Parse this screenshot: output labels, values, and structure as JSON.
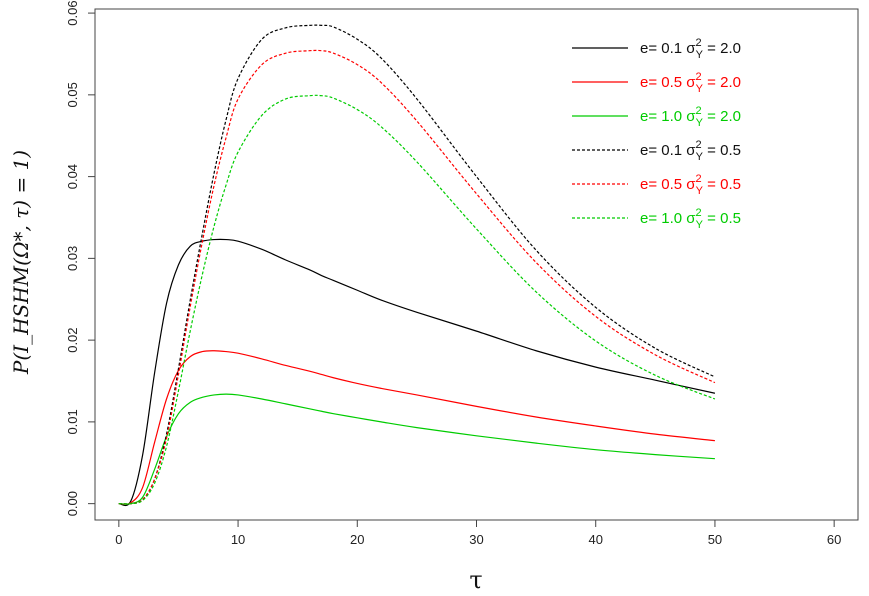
{
  "chart_data": {
    "type": "line",
    "title": "",
    "xlabel": "τ",
    "ylabel": "P(I_HSHM(Ω*, τ) = 1)",
    "xlim": [
      -2,
      62
    ],
    "ylim": [
      -0.002,
      0.0605
    ],
    "x_ticks": [
      0,
      10,
      20,
      30,
      40,
      50,
      60
    ],
    "x_tick_labels": [
      "0",
      "10",
      "20",
      "30",
      "40",
      "50",
      "60"
    ],
    "y_ticks": [
      0.0,
      0.01,
      0.02,
      0.03,
      0.04,
      0.05,
      0.06
    ],
    "y_tick_labels": [
      "0.00",
      "0.01",
      "0.02",
      "0.03",
      "0.04",
      "0.05",
      "0.06"
    ],
    "grid": false,
    "legend_position": "top-right",
    "x": [
      0,
      1,
      2,
      3,
      4,
      5,
      6,
      7,
      8,
      9,
      10,
      12,
      14,
      16,
      17,
      18,
      20,
      22,
      25,
      30,
      35,
      40,
      45,
      50
    ],
    "series": [
      {
        "name": "e = 0.1 σY² = 2.0",
        "color": "#000000",
        "dash": "solid",
        "values": [
          0.0,
          0.0003,
          0.006,
          0.016,
          0.0245,
          0.0292,
          0.0315,
          0.0321,
          0.0323,
          0.0323,
          0.0321,
          0.0311,
          0.0298,
          0.0286,
          0.0279,
          0.0273,
          0.0261,
          0.0249,
          0.0234,
          0.0211,
          0.0187,
          0.0167,
          0.0151,
          0.0135
        ]
      },
      {
        "name": "e = 0.5 σY² = 2.0",
        "color": "#ff0000",
        "dash": "solid",
        "values": [
          0.0,
          0.0001,
          0.002,
          0.0075,
          0.0128,
          0.0163,
          0.018,
          0.0186,
          0.0187,
          0.0186,
          0.0184,
          0.0177,
          0.0169,
          0.0162,
          0.0158,
          0.0154,
          0.0147,
          0.0141,
          0.0133,
          0.0119,
          0.0106,
          0.0095,
          0.0085,
          0.0077
        ]
      },
      {
        "name": "e = 1.0 σY² = 2.0",
        "color": "#00cc00",
        "dash": "solid",
        "values": [
          0.0,
          0.0,
          0.0008,
          0.0042,
          0.0082,
          0.011,
          0.0124,
          0.013,
          0.0133,
          0.0134,
          0.0133,
          0.0128,
          0.0122,
          0.0116,
          0.0113,
          0.011,
          0.0105,
          0.01,
          0.0093,
          0.0083,
          0.0074,
          0.0066,
          0.006,
          0.0055
        ]
      },
      {
        "name": "e = 0.1 σY² = 0.5",
        "color": "#000000",
        "dash": "dashed",
        "values": [
          0.0,
          0.0,
          0.0005,
          0.003,
          0.0085,
          0.0165,
          0.025,
          0.033,
          0.0405,
          0.047,
          0.052,
          0.0568,
          0.0582,
          0.0585,
          0.0585,
          0.0583,
          0.0568,
          0.0545,
          0.0495,
          0.04,
          0.031,
          0.024,
          0.019,
          0.0155
        ]
      },
      {
        "name": "e = 0.5 σY² = 0.5",
        "color": "#ff0000",
        "dash": "dashed",
        "values": [
          0.0,
          0.0,
          0.0005,
          0.003,
          0.008,
          0.0158,
          0.0242,
          0.032,
          0.039,
          0.0448,
          0.0495,
          0.0537,
          0.0551,
          0.0554,
          0.0554,
          0.0551,
          0.0537,
          0.0515,
          0.0468,
          0.0379,
          0.0295,
          0.0229,
          0.0182,
          0.0148
        ]
      },
      {
        "name": "e = 1.0 σY² = 0.5",
        "color": "#00cc00",
        "dash": "dashed",
        "values": [
          0.0,
          0.0,
          0.0004,
          0.0025,
          0.007,
          0.0138,
          0.0212,
          0.028,
          0.034,
          0.039,
          0.043,
          0.0475,
          0.0495,
          0.0499,
          0.0499,
          0.0496,
          0.0482,
          0.0461,
          0.0418,
          0.0336,
          0.0259,
          0.0199,
          0.0157,
          0.0128
        ]
      }
    ]
  },
  "legend_rows": [
    {
      "label": "e= 0.1 σ",
      "sup": "2",
      "sub": "Y",
      "tail": " = 2.0",
      "color": "#000000",
      "text_color": "#111111",
      "dash": "solid"
    },
    {
      "label": "e= 0.5 σ",
      "sup": "2",
      "sub": "Y",
      "tail": " = 2.0",
      "color": "#ff0000",
      "text_color": "#ff0000",
      "dash": "solid"
    },
    {
      "label": "e= 1.0 σ",
      "sup": "2",
      "sub": "Y",
      "tail": " = 2.0",
      "color": "#00cc00",
      "text_color": "#00cc00",
      "dash": "solid"
    },
    {
      "label": "e= 0.1 σ",
      "sup": "2",
      "sub": "Y",
      "tail": " = 0.5",
      "color": "#000000",
      "text_color": "#111111",
      "dash": "dashed"
    },
    {
      "label": "e= 0.5 σ",
      "sup": "2",
      "sub": "Y",
      "tail": " = 0.5",
      "color": "#ff0000",
      "text_color": "#ff0000",
      "dash": "dashed"
    },
    {
      "label": "e= 1.0 σ",
      "sup": "2",
      "sub": "Y",
      "tail": " = 0.5",
      "color": "#00cc00",
      "text_color": "#00cc00",
      "dash": "dashed"
    }
  ]
}
